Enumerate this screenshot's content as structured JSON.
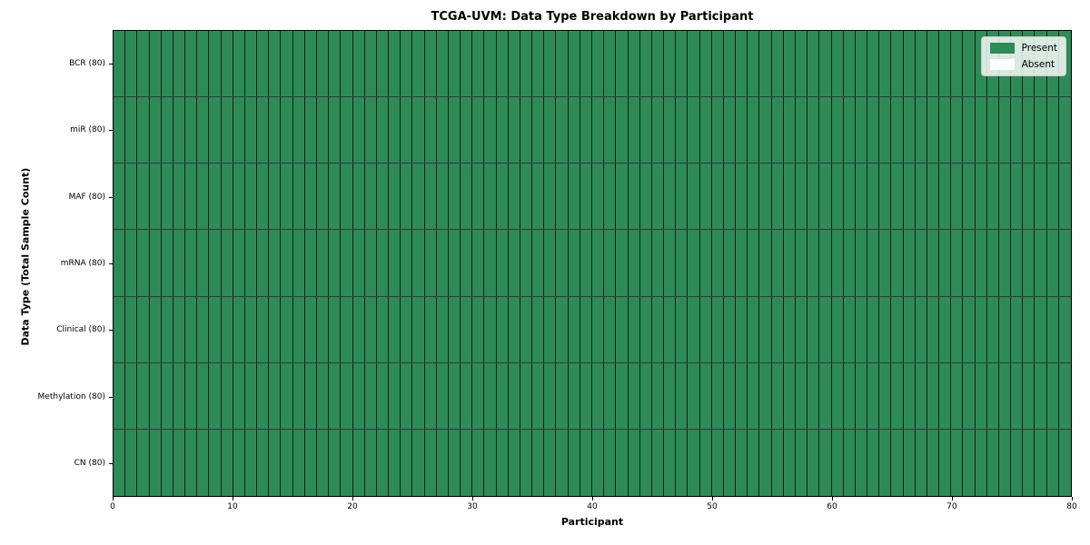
{
  "chart_data": {
    "type": "heatmap",
    "title": "TCGA-UVM: Data Type Breakdown by Participant",
    "xlabel": "Participant",
    "ylabel": "Data Type (Total Sample Count)",
    "xlim": [
      0,
      80
    ],
    "x_ticks": [
      0,
      10,
      20,
      30,
      40,
      50,
      60,
      70,
      80
    ],
    "n_participants": 80,
    "rows": [
      {
        "label": "BCR (80)",
        "present_count": 80
      },
      {
        "label": "miR (80)",
        "present_count": 80
      },
      {
        "label": "MAF (80)",
        "present_count": 80
      },
      {
        "label": "mRNA (80)",
        "present_count": 80
      },
      {
        "label": "Clinical (80)",
        "present_count": 80
      },
      {
        "label": "Methylation (80)",
        "present_count": 80
      },
      {
        "label": "CN (80)",
        "present_count": 80
      }
    ],
    "legend": [
      {
        "label": "Present",
        "color": "#2e8b57"
      },
      {
        "label": "Absent",
        "color": "#ffffff"
      }
    ],
    "legend_position": "upper right",
    "colors": {
      "present": "#2e8b57",
      "absent": "#ffffff",
      "cell_edge": "#1a1a1a",
      "spine": "#000000"
    },
    "grid": false
  }
}
